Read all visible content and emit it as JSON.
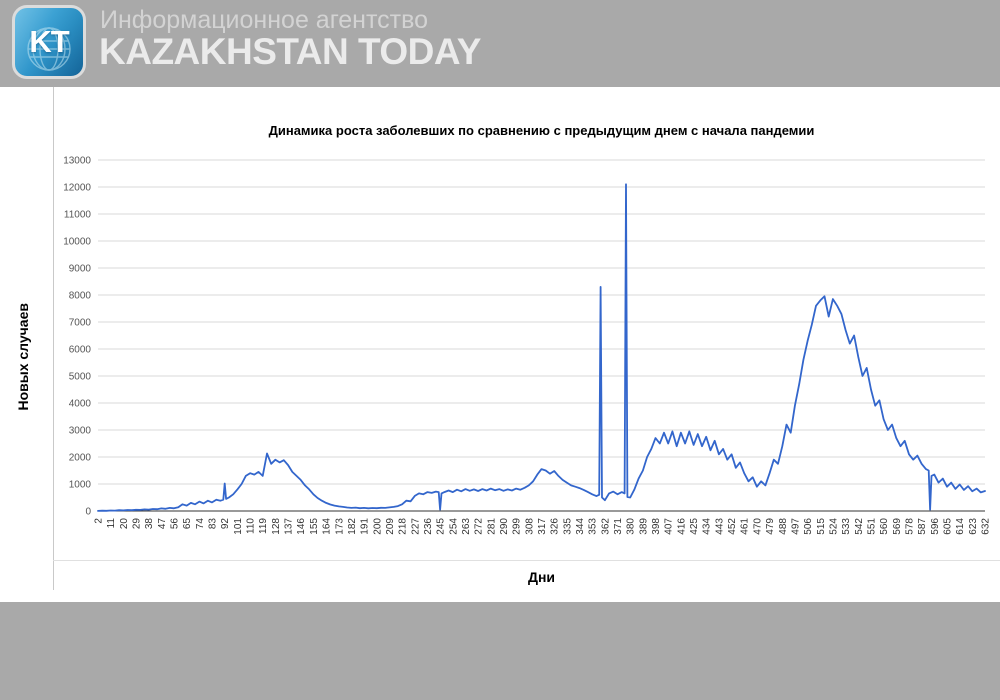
{
  "header": {
    "agency_line": "Информационное агентство",
    "brand": "KAZAKHSTAN TODAY",
    "logo_text": "KT"
  },
  "colors": {
    "header_bg": "#a9a9a9",
    "panel_bg": "#ffffff",
    "line": "#3366cc",
    "grid": "#d9d9d9",
    "axis": "#333333",
    "tick_text": "#555555",
    "logo_blue_top": "#41acdd",
    "logo_blue_bottom": "#166fa9"
  },
  "chart_data": {
    "type": "line",
    "title": "Динамика роста заболевших по сравнению с предыдущим днем с начала пандемии",
    "xlabel": "Дни",
    "ylabel": "Новых случаев",
    "xlim": [
      2,
      632
    ],
    "ylim": [
      0,
      13000
    ],
    "grid": true,
    "legend": "none",
    "line_color": "#3366cc",
    "grid_color": "#d9d9d9",
    "y_ticks": [
      0,
      1000,
      2000,
      3000,
      4000,
      5000,
      6000,
      7000,
      8000,
      9000,
      10000,
      11000,
      12000,
      13000
    ],
    "x_ticks": [
      2,
      11,
      20,
      29,
      38,
      47,
      56,
      65,
      74,
      83,
      92,
      101,
      110,
      119,
      128,
      137,
      146,
      155,
      164,
      173,
      182,
      191,
      200,
      209,
      218,
      227,
      236,
      245,
      254,
      263,
      272,
      281,
      290,
      299,
      308,
      317,
      326,
      335,
      344,
      353,
      362,
      371,
      380,
      389,
      398,
      407,
      416,
      425,
      434,
      443,
      452,
      461,
      470,
      479,
      488,
      497,
      506,
      515,
      524,
      533,
      542,
      551,
      560,
      569,
      578,
      587,
      596,
      605,
      614,
      623,
      632
    ],
    "series": [
      {
        "name": "Новых случаев",
        "x": [
          2,
          5,
          8,
          11,
          14,
          17,
          20,
          23,
          26,
          29,
          32,
          35,
          38,
          41,
          44,
          47,
          50,
          53,
          56,
          59,
          62,
          65,
          68,
          71,
          74,
          77,
          80,
          83,
          86,
          89,
          91,
          92,
          93,
          95,
          98,
          101,
          104,
          107,
          110,
          113,
          116,
          119,
          122,
          125,
          128,
          131,
          134,
          137,
          140,
          143,
          146,
          149,
          152,
          155,
          158,
          161,
          164,
          167,
          170,
          173,
          176,
          179,
          182,
          185,
          188,
          191,
          194,
          197,
          200,
          203,
          206,
          209,
          212,
          215,
          218,
          221,
          224,
          227,
          230,
          233,
          236,
          239,
          242,
          244,
          245,
          246,
          248,
          251,
          254,
          257,
          260,
          263,
          266,
          269,
          272,
          275,
          278,
          281,
          284,
          287,
          290,
          293,
          296,
          299,
          302,
          305,
          308,
          311,
          314,
          317,
          320,
          323,
          326,
          329,
          332,
          335,
          338,
          341,
          344,
          347,
          350,
          353,
          356,
          358,
          359,
          360,
          362,
          365,
          368,
          371,
          374,
          376,
          377,
          378,
          380,
          383,
          386,
          389,
          392,
          395,
          398,
          401,
          404,
          407,
          410,
          413,
          416,
          419,
          422,
          425,
          428,
          431,
          434,
          437,
          440,
          443,
          446,
          449,
          452,
          455,
          458,
          461,
          464,
          467,
          470,
          473,
          476,
          479,
          482,
          485,
          488,
          491,
          494,
          497,
          500,
          503,
          506,
          509,
          512,
          515,
          518,
          521,
          524,
          527,
          530,
          533,
          536,
          539,
          542,
          545,
          548,
          551,
          554,
          557,
          560,
          563,
          566,
          569,
          572,
          575,
          578,
          581,
          584,
          587,
          590,
          592,
          593,
          594,
          596,
          599,
          602,
          605,
          608,
          611,
          614,
          617,
          620,
          623,
          626,
          629,
          632
        ],
        "y": [
          5,
          12,
          8,
          20,
          15,
          28,
          22,
          38,
          30,
          45,
          40,
          60,
          52,
          75,
          65,
          95,
          80,
          115,
          100,
          140,
          250,
          200,
          300,
          250,
          350,
          280,
          380,
          320,
          420,
          380,
          420,
          1020,
          450,
          500,
          620,
          800,
          1000,
          1300,
          1400,
          1350,
          1450,
          1300,
          2130,
          1750,
          1900,
          1800,
          1880,
          1700,
          1450,
          1300,
          1150,
          950,
          800,
          620,
          480,
          380,
          300,
          240,
          200,
          170,
          150,
          130,
          115,
          125,
          105,
          115,
          100,
          110,
          105,
          120,
          115,
          135,
          150,
          180,
          250,
          380,
          360,
          560,
          650,
          620,
          700,
          670,
          720,
          700,
          50,
          650,
          700,
          760,
          700,
          790,
          730,
          810,
          750,
          800,
          740,
          810,
          760,
          830,
          770,
          810,
          750,
          800,
          760,
          830,
          790,
          860,
          950,
          1100,
          1350,
          1550,
          1500,
          1380,
          1480,
          1300,
          1150,
          1050,
          950,
          900,
          850,
          780,
          700,
          620,
          550,
          600,
          8300,
          500,
          400,
          650,
          720,
          620,
          700,
          650,
          12100,
          520,
          500,
          800,
          1200,
          1500,
          2000,
          2300,
          2700,
          2500,
          2900,
          2500,
          2950,
          2400,
          2900,
          2500,
          2950,
          2450,
          2850,
          2400,
          2750,
          2250,
          2600,
          2100,
          2300,
          1900,
          2100,
          1600,
          1800,
          1400,
          1100,
          1250,
          900,
          1100,
          950,
          1400,
          1900,
          1750,
          2400,
          3200,
          2900,
          3900,
          4700,
          5600,
          6300,
          6900,
          7600,
          7800,
          7950,
          7200,
          7850,
          7600,
          7300,
          6700,
          6200,
          6500,
          5700,
          5000,
          5300,
          4500,
          3900,
          4100,
          3400,
          3000,
          3200,
          2700,
          2400,
          2600,
          2100,
          1900,
          2050,
          1750,
          1550,
          1500,
          50,
          1300,
          1350,
          1050,
          1200,
          900,
          1050,
          820,
          980,
          780,
          920,
          730,
          830,
          690,
          740
        ]
      }
    ]
  }
}
